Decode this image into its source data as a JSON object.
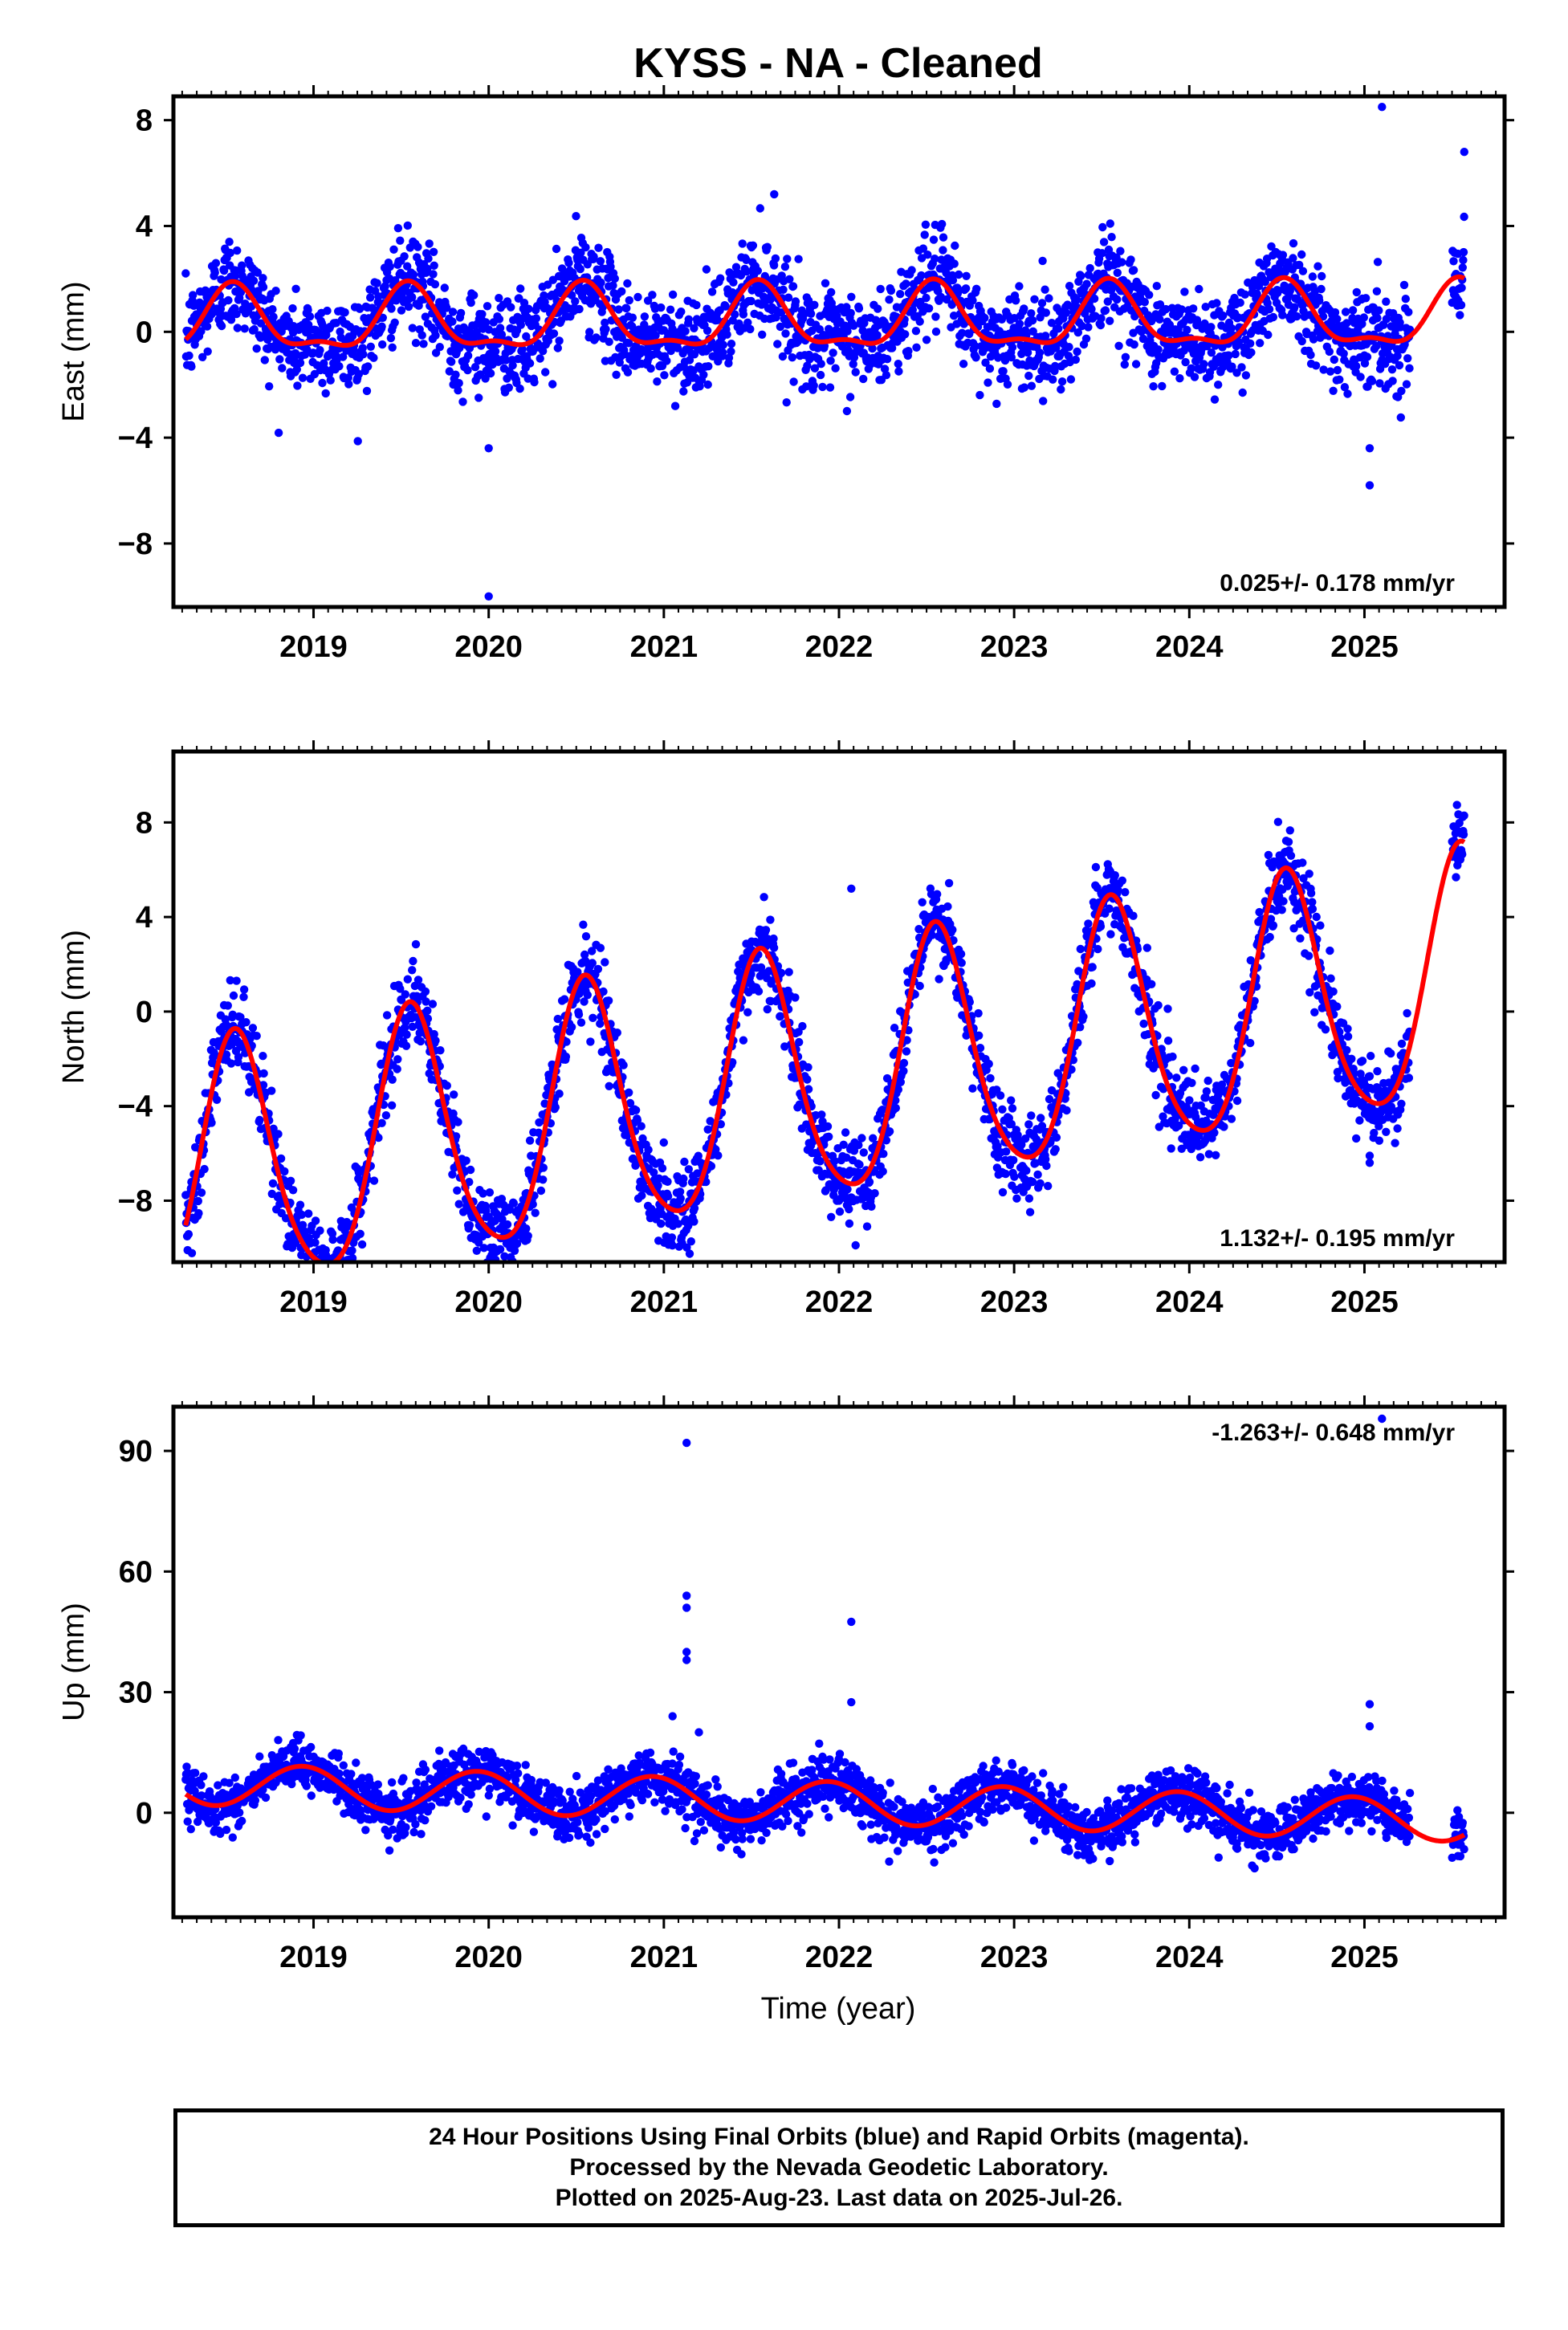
{
  "title": "KYSS  - NA - Cleaned",
  "x_axis_label": "Time (year)",
  "footer": {
    "line1": "24 Hour Positions Using Final Orbits (blue) and Rapid Orbits (magenta).",
    "line2": "Processed by the Nevada Geodetic Laboratory.",
    "line3": "Plotted on 2025-Aug-23. Last data on 2025-Jul-26."
  },
  "colors": {
    "data_points": "#0000ff",
    "model_curve": "#ff0000",
    "frame": "#000000"
  },
  "chart_data": [
    {
      "type": "scatter",
      "ylabel": "East (mm)",
      "xlim": [
        2018.2,
        2025.8
      ],
      "ylim": [
        -10.4,
        8.9
      ],
      "yticks": [
        -8,
        -4,
        0,
        4,
        8
      ],
      "xticks": [
        2019,
        2020,
        2021,
        2022,
        2023,
        2024,
        2025
      ],
      "rate_text": "0.025+/- 0.178 mm/yr",
      "rate_position": "bottom-right",
      "model": {
        "trend_mm_per_yr": 0.025,
        "offset_mm": 0.4,
        "annual_cos": -1.1,
        "annual_sin": -0.3,
        "semiannual_cos": 0.4,
        "semiannual_sin": 0.2
      },
      "series": [
        {
          "start": 2018.27,
          "end": 2025.57,
          "scatter_sd_mm": 0.9
        }
      ],
      "outliers": [
        [
          2020.0,
          -10.0
        ],
        [
          2020.0,
          -4.4
        ],
        [
          2025.03,
          -5.8
        ],
        [
          2025.03,
          -4.4
        ],
        [
          2025.1,
          8.5
        ],
        [
          2025.57,
          6.8
        ],
        [
          2021.63,
          5.2
        ]
      ]
    },
    {
      "type": "scatter",
      "ylabel": "North (mm)",
      "xlim": [
        2018.2,
        2025.8
      ],
      "ylim": [
        -10.6,
        11.0
      ],
      "yticks": [
        -8,
        -4,
        0,
        4,
        8
      ],
      "xticks": [
        2019,
        2020,
        2021,
        2022,
        2023,
        2024,
        2025
      ],
      "rate_text": "1.132+/- 0.195 mm/yr",
      "rate_position": "bottom-right",
      "model": {
        "trend_mm_per_yr": 1.132,
        "offset_mm": -2.8,
        "annual_cos": -4.9,
        "annual_sin": -1.9,
        "semiannual_cos": 0.7,
        "semiannual_sin": 0.3
      },
      "series": [
        {
          "start": 2018.27,
          "end": 2025.57,
          "scatter_sd_mm": 0.9
        }
      ],
      "outliers": [
        [
          2022.07,
          5.2
        ],
        [
          2022.0,
          -8.0
        ],
        [
          2025.03,
          -6.4
        ],
        [
          2025.03,
          -6.1
        ],
        [
          2018.93,
          -10.3
        ]
      ]
    },
    {
      "type": "scatter",
      "ylabel": "Up (mm)",
      "xlim": [
        2018.2,
        2025.8
      ],
      "ylim": [
        -26,
        101
      ],
      "yticks": [
        0,
        30,
        60,
        90
      ],
      "xticks": [
        2019,
        2020,
        2021,
        2022,
        2023,
        2024,
        2025
      ],
      "rate_text": "-1.263+/- 0.648 mm/yr",
      "rate_position": "top-right",
      "model": {
        "trend_mm_per_yr": -1.263,
        "offset_mm": 2.5,
        "annual_cos": 4.8,
        "annual_sin": -2.0,
        "semiannual_cos": 0.0,
        "semiannual_sin": 0.0
      },
      "series": [
        {
          "start": 2018.27,
          "end": 2025.57,
          "scatter_sd_mm": 3.2
        }
      ],
      "outliers": [
        [
          2021.13,
          92
        ],
        [
          2021.13,
          54
        ],
        [
          2021.13,
          51
        ],
        [
          2021.13,
          40
        ],
        [
          2021.13,
          38
        ],
        [
          2022.07,
          47.5
        ],
        [
          2022.07,
          27.5
        ],
        [
          2025.03,
          27
        ],
        [
          2025.03,
          21.5
        ],
        [
          2025.1,
          98
        ],
        [
          2021.05,
          24
        ],
        [
          2021.2,
          20
        ]
      ]
    }
  ]
}
